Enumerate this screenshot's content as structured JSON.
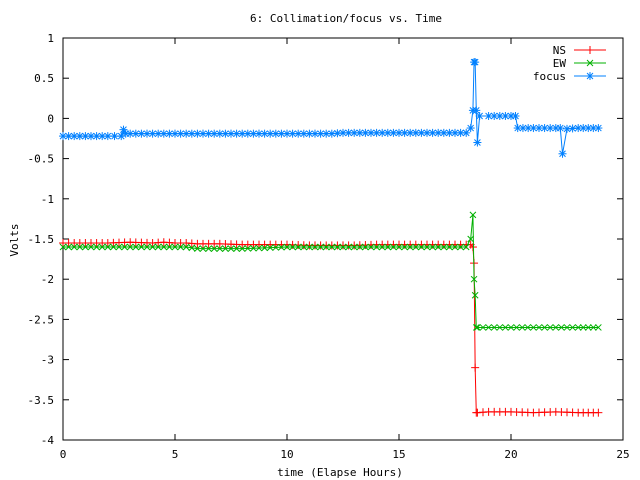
{
  "chart_data": {
    "type": "line",
    "title": "6: Collimation/focus vs. Time",
    "xlabel": "time (Elapse Hours)",
    "ylabel": "Volts",
    "xlim": [
      0,
      25
    ],
    "ylim": [
      -4,
      1
    ],
    "x_ticks": [
      0,
      5,
      10,
      15,
      20,
      25
    ],
    "y_ticks": [
      1,
      0.5,
      0,
      -0.5,
      -1,
      -1.5,
      -2,
      -2.5,
      -3,
      -3.5,
      -4
    ],
    "x_tick_labels": [
      "0",
      "5",
      "10",
      "15",
      "20",
      "25"
    ],
    "y_tick_labels": [
      "1",
      "0.5",
      "0",
      "-0.5",
      "-1",
      "-1.5",
      "-2",
      "-2.5",
      "-3",
      "-3.5",
      "-4"
    ],
    "grid": false,
    "legend_position": "top-right",
    "series": [
      {
        "name": "NS",
        "color": "#ff0000",
        "marker": "plus",
        "x": [
          0,
          1,
          2,
          3,
          4,
          4.5,
          5,
          5.5,
          6,
          7,
          8,
          9,
          10,
          11,
          12,
          13,
          14,
          15,
          16,
          17,
          18,
          18.2,
          18.3,
          18.35,
          18.4,
          18.45,
          18.5,
          19,
          20,
          21,
          22,
          23,
          23.9
        ],
        "y": [
          -1.55,
          -1.55,
          -1.55,
          -1.54,
          -1.55,
          -1.54,
          -1.55,
          -1.55,
          -1.56,
          -1.56,
          -1.57,
          -1.57,
          -1.57,
          -1.58,
          -1.58,
          -1.58,
          -1.57,
          -1.57,
          -1.57,
          -1.57,
          -1.57,
          -1.57,
          -1.6,
          -1.8,
          -3.1,
          -3.66,
          -3.66,
          -3.65,
          -3.65,
          -3.66,
          -3.65,
          -3.66,
          -3.66
        ]
      },
      {
        "name": "EW",
        "color": "#00b000",
        "marker": "cross",
        "x": [
          0,
          1,
          2,
          3,
          4,
          5,
          5.5,
          6,
          7,
          8,
          9,
          10,
          11,
          12,
          13,
          14,
          15,
          16,
          17,
          18,
          18.2,
          18.3,
          18.35,
          18.4,
          18.45,
          18.5,
          19,
          20,
          21,
          22,
          23,
          23.9
        ],
        "y": [
          -1.6,
          -1.6,
          -1.6,
          -1.6,
          -1.6,
          -1.6,
          -1.6,
          -1.62,
          -1.62,
          -1.62,
          -1.61,
          -1.6,
          -1.6,
          -1.6,
          -1.6,
          -1.6,
          -1.6,
          -1.6,
          -1.6,
          -1.6,
          -1.5,
          -1.2,
          -2.0,
          -2.2,
          -2.6,
          -2.6,
          -2.6,
          -2.6,
          -2.6,
          -2.6,
          -2.6,
          -2.6
        ]
      },
      {
        "name": "focus",
        "color": "#0080ff",
        "marker": "star",
        "x": [
          0,
          1,
          2,
          2.6,
          2.7,
          2.8,
          3,
          4,
          5,
          6,
          7,
          8,
          9,
          10,
          11,
          12,
          12.5,
          13,
          14,
          15,
          16,
          17,
          18,
          18.2,
          18.3,
          18.35,
          18.4,
          18.45,
          18.5,
          18.6,
          19,
          20,
          20.2,
          20.3,
          21,
          22,
          22.2,
          22.3,
          22.5,
          23,
          23.9
        ],
        "y": [
          -0.22,
          -0.22,
          -0.22,
          -0.22,
          -0.14,
          -0.19,
          -0.19,
          -0.19,
          -0.19,
          -0.19,
          -0.19,
          -0.19,
          -0.19,
          -0.19,
          -0.19,
          -0.19,
          -0.18,
          -0.18,
          -0.18,
          -0.18,
          -0.18,
          -0.18,
          -0.18,
          -0.12,
          0.1,
          0.7,
          0.7,
          0.1,
          -0.3,
          0.03,
          0.03,
          0.03,
          0.03,
          -0.12,
          -0.12,
          -0.12,
          -0.12,
          -0.44,
          -0.13,
          -0.12,
          -0.12
        ]
      }
    ]
  }
}
